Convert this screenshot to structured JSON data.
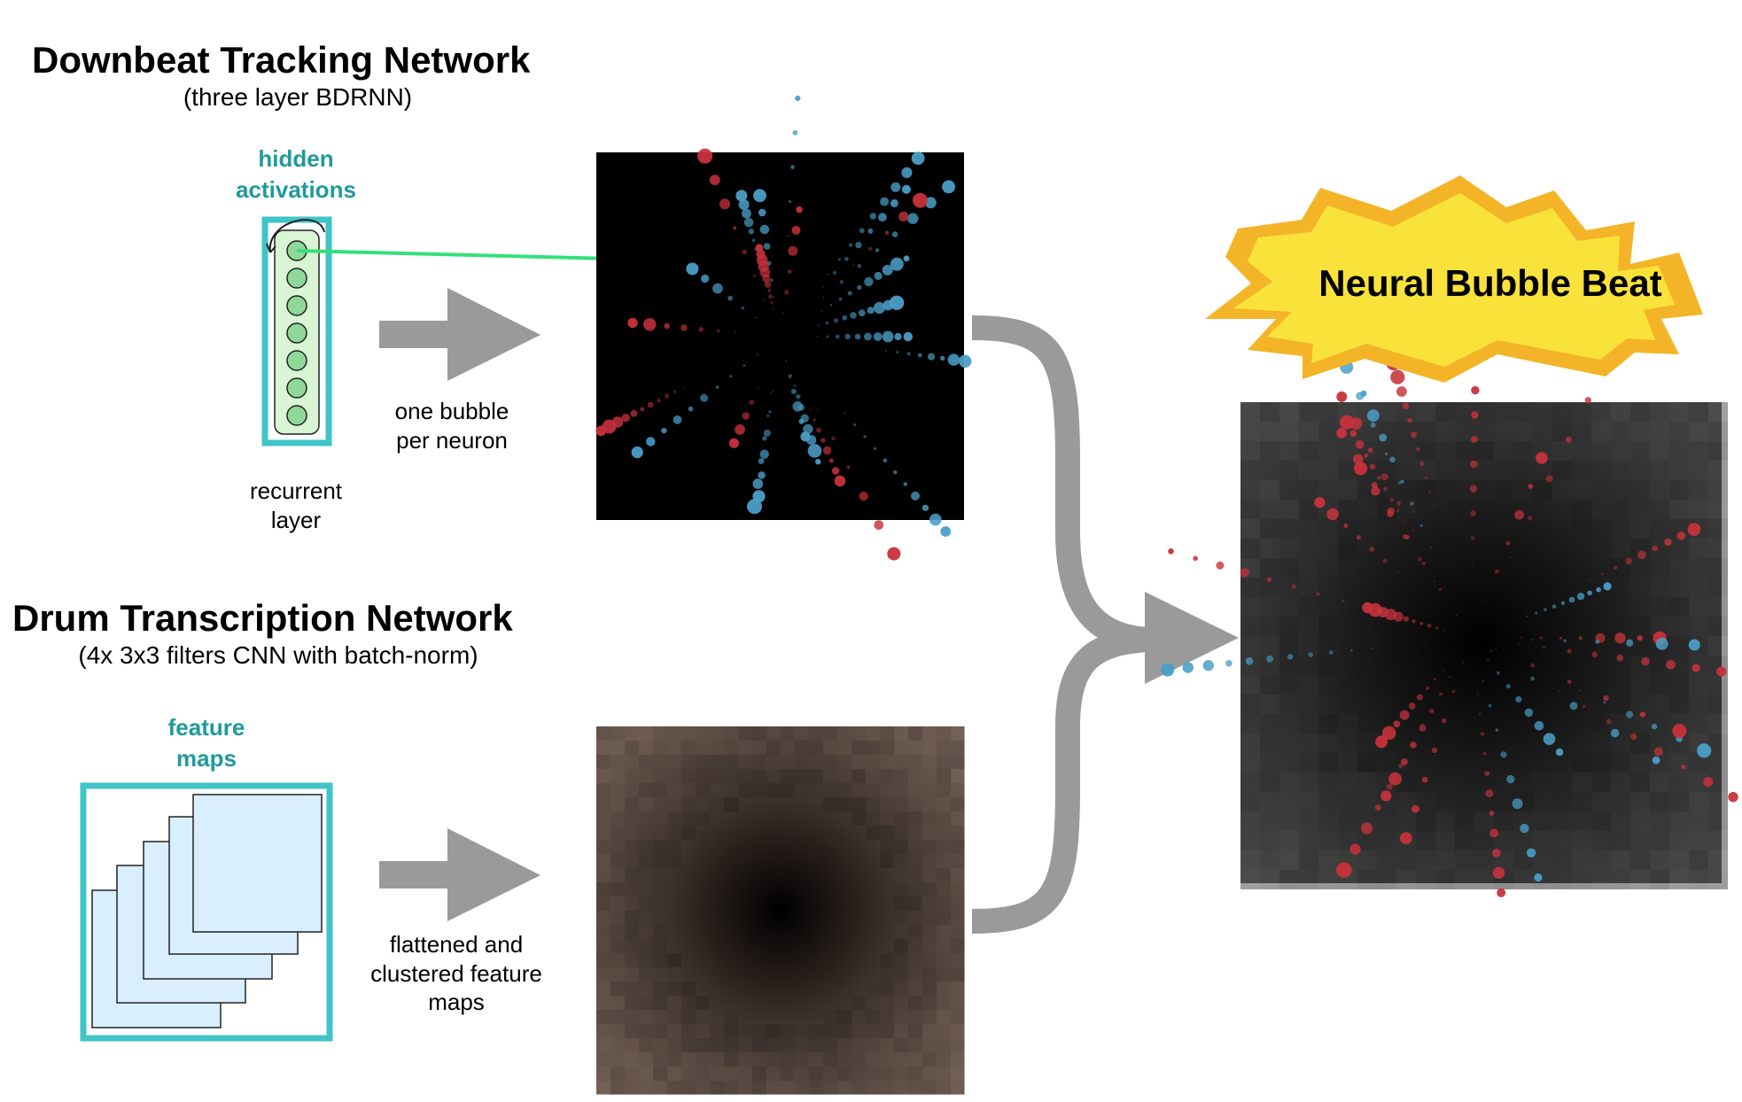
{
  "downbeat": {
    "title": "Downbeat Tracking Network",
    "subtitle": "(three layer BDRNN)",
    "hidden_label": "hidden\nactivations",
    "recurrent_label": "recurrent\nlayer",
    "arrow_label": "one bubble\nper neuron"
  },
  "drum": {
    "title": "Drum Transcription Network",
    "subtitle": "(4x 3x3 filters CNN with batch-norm)",
    "feature_label": "feature\nmaps",
    "arrow_label": "flattened and\nclustered feature\nmaps"
  },
  "result": {
    "title": "Neural Bubble Beat"
  },
  "colors": {
    "teal": "#3fc4c8",
    "teal_text": "#1f9a9c",
    "neuron_fill": "#8fd89a",
    "layer_fill": "#d8f5d4",
    "feature_fill": "#d9eeff",
    "arrow_gray": "#9a9a9a",
    "green_arrow": "#33e07a",
    "bubble_red": "#c8323c",
    "bubble_blue": "#4a9ec8",
    "star_yellow": "#f9e23a",
    "star_orange": "#f4b428"
  }
}
